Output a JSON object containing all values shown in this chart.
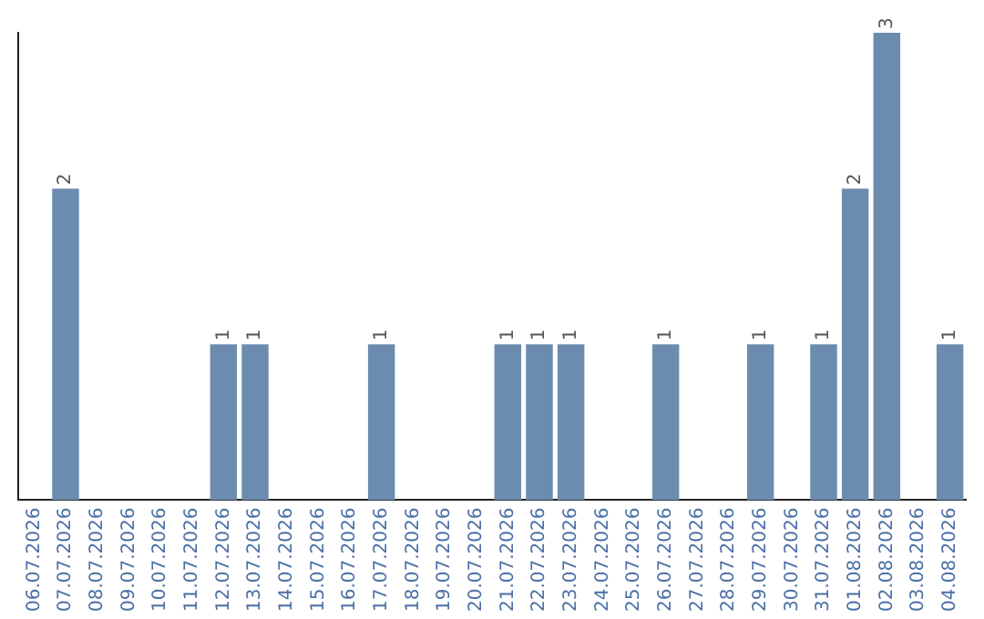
{
  "chart_data": {
    "type": "bar",
    "categories": [
      "06.07.2026",
      "07.07.2026",
      "08.07.2026",
      "09.07.2026",
      "10.07.2026",
      "11.07.2026",
      "12.07.2026",
      "13.07.2026",
      "14.07.2026",
      "15.07.2026",
      "16.07.2026",
      "17.07.2026",
      "18.07.2026",
      "19.07.2026",
      "20.07.2026",
      "21.07.2026",
      "22.07.2026",
      "23.07.2026",
      "24.07.2026",
      "25.07.2026",
      "26.07.2026",
      "27.07.2026",
      "28.07.2026",
      "29.07.2026",
      "30.07.2026",
      "31.07.2026",
      "01.08.2026",
      "02.08.2026",
      "03.08.2026",
      "04.08.2026"
    ],
    "values": [
      0,
      2,
      0,
      0,
      0,
      0,
      1,
      1,
      0,
      0,
      0,
      1,
      0,
      0,
      0,
      1,
      1,
      1,
      0,
      0,
      1,
      0,
      0,
      1,
      0,
      1,
      2,
      3,
      0,
      1
    ],
    "value_labels": [
      null,
      "2",
      null,
      null,
      null,
      null,
      "1",
      "1",
      null,
      null,
      null,
      "1",
      null,
      null,
      null,
      "1",
      "1",
      "1",
      null,
      null,
      "1",
      null,
      null,
      "1",
      null,
      "1",
      "2",
      "3",
      null,
      "1"
    ],
    "color": "#6b8cae",
    "grid": false,
    "legend": false,
    "tick_labels": "x"
  }
}
